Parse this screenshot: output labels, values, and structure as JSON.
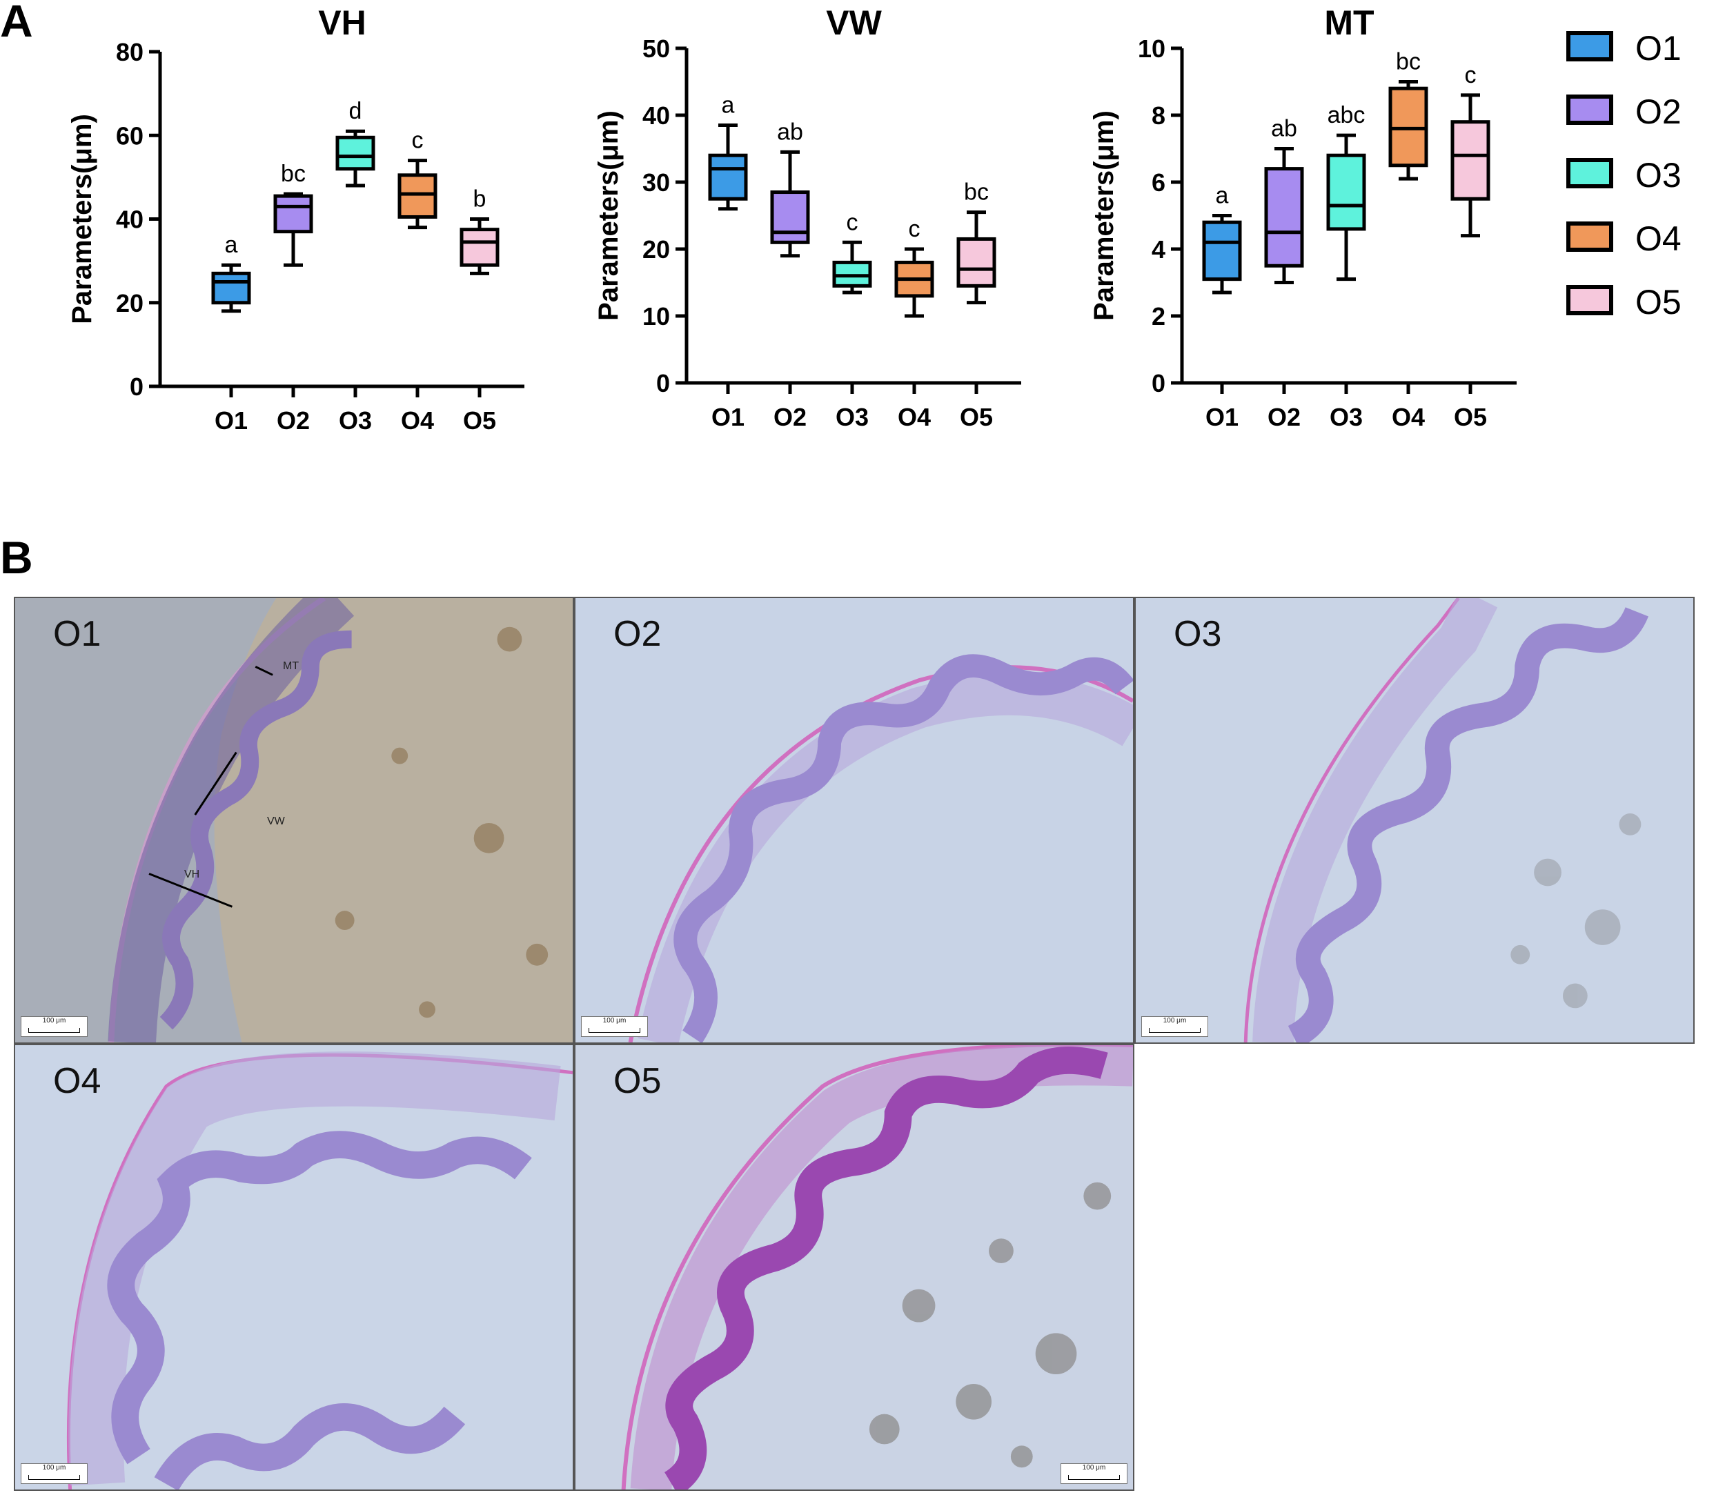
{
  "panels": {
    "a": "A",
    "b": "B"
  },
  "chart_data": [
    {
      "type": "box",
      "title": "VH",
      "ylabel": "Parameters(μm)",
      "ylim": [
        0,
        80
      ],
      "yticks": [
        0,
        20,
        40,
        60,
        80
      ],
      "categories": [
        "O1",
        "O2",
        "O3",
        "O4",
        "O5"
      ],
      "boxes": [
        {
          "min": 18,
          "q1": 20,
          "median": 25,
          "q3": 27,
          "max": 29,
          "letter": "a"
        },
        {
          "min": 29,
          "q1": 37,
          "median": 43,
          "q3": 45.5,
          "max": 46,
          "letter": "bc"
        },
        {
          "min": 48,
          "q1": 52,
          "median": 55,
          "q3": 59.5,
          "max": 61,
          "letter": "d"
        },
        {
          "min": 38,
          "q1": 40.5,
          "median": 46,
          "q3": 50.5,
          "max": 54,
          "letter": "c"
        },
        {
          "min": 27,
          "q1": 29,
          "median": 34.5,
          "q3": 37.5,
          "max": 40,
          "letter": "b"
        }
      ]
    },
    {
      "type": "box",
      "title": "VW",
      "ylabel": "Parameters(μm)",
      "ylim": [
        0,
        50
      ],
      "yticks": [
        0,
        10,
        20,
        30,
        40,
        50
      ],
      "categories": [
        "O1",
        "O2",
        "O3",
        "O4",
        "O5"
      ],
      "boxes": [
        {
          "min": 26,
          "q1": 27.5,
          "median": 32,
          "q3": 34,
          "max": 38.5,
          "letter": "a"
        },
        {
          "min": 19,
          "q1": 21,
          "median": 22.5,
          "q3": 28.5,
          "max": 34.5,
          "letter": "ab"
        },
        {
          "min": 13.5,
          "q1": 14.5,
          "median": 16,
          "q3": 18,
          "max": 21,
          "letter": "c"
        },
        {
          "min": 10,
          "q1": 13,
          "median": 15.5,
          "q3": 18,
          "max": 20,
          "letter": "c"
        },
        {
          "min": 12,
          "q1": 14.5,
          "median": 17,
          "q3": 21.5,
          "max": 25.5,
          "letter": "bc"
        }
      ]
    },
    {
      "type": "box",
      "title": "MT",
      "ylabel": "Parameters(μm)",
      "ylim": [
        0,
        10
      ],
      "yticks": [
        0,
        2,
        4,
        6,
        8,
        10
      ],
      "categories": [
        "O1",
        "O2",
        "O3",
        "O4",
        "O5"
      ],
      "boxes": [
        {
          "min": 2.7,
          "q1": 3.1,
          "median": 4.2,
          "q3": 4.8,
          "max": 5.0,
          "letter": "a"
        },
        {
          "min": 3.0,
          "q1": 3.5,
          "median": 4.5,
          "q3": 6.4,
          "max": 7.0,
          "letter": "ab"
        },
        {
          "min": 3.1,
          "q1": 4.6,
          "median": 5.3,
          "q3": 6.8,
          "max": 7.4,
          "letter": "abc"
        },
        {
          "min": 6.1,
          "q1": 6.5,
          "median": 7.6,
          "q3": 8.8,
          "max": 9.0,
          "letter": "bc"
        },
        {
          "min": 4.4,
          "q1": 5.5,
          "median": 6.8,
          "q3": 7.8,
          "max": 8.6,
          "letter": "c"
        }
      ]
    }
  ],
  "legend": [
    {
      "label": "O1",
      "color": "#3c9be6"
    },
    {
      "label": "O2",
      "color": "#a78cf0"
    },
    {
      "label": "O3",
      "color": "#5ef2dc"
    },
    {
      "label": "O4",
      "color": "#f0985a"
    },
    {
      "label": "O5",
      "color": "#f6c8dc"
    }
  ],
  "micrographs": [
    {
      "label": "O1",
      "scale": "100 μm",
      "annotations": [
        "MT",
        "VW",
        "VH"
      ]
    },
    {
      "label": "O2",
      "scale": "100 μm"
    },
    {
      "label": "O3",
      "scale": "100 μm"
    },
    {
      "label": "O4",
      "scale": "100 μm"
    },
    {
      "label": "O5",
      "scale": "100 μm"
    }
  ]
}
